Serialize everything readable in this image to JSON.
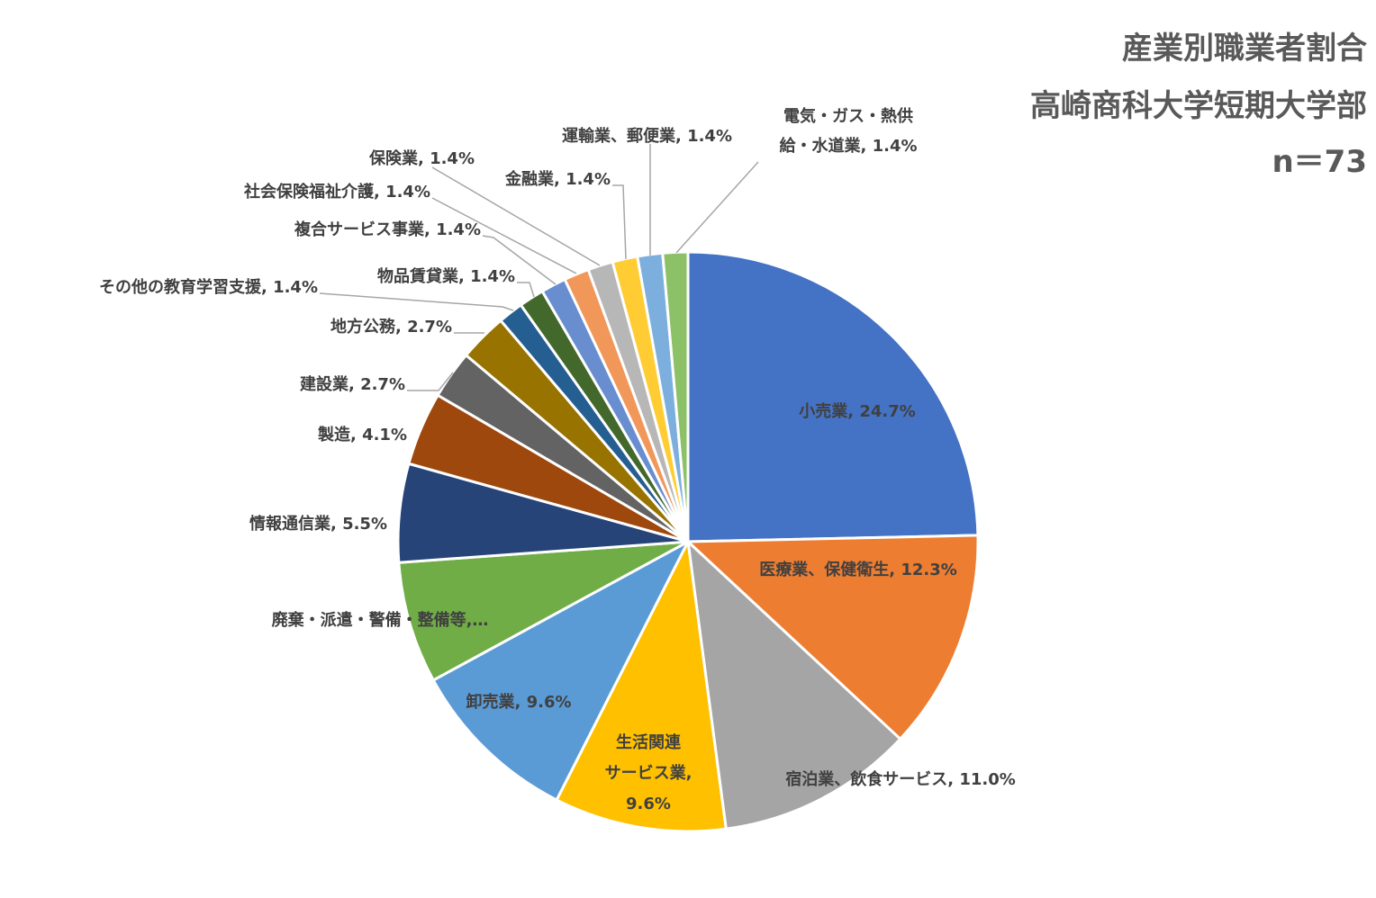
{
  "title_lines": [
    "産業別職業者割合",
    "高崎商科大学短期大学部",
    "n＝73"
  ],
  "chart_data": {
    "type": "pie",
    "title": "産業別職業者割合 高崎商科大学短期大学部 n＝73",
    "slices": [
      {
        "label": "小売業",
        "value": 24.7,
        "label_text": [
          "小売業, 24.7%"
        ],
        "color": "#4472C4"
      },
      {
        "label": "医療業、保健衛生",
        "value": 12.3,
        "label_text": [
          "医療業、保健衛生, 12.3%"
        ],
        "color": "#ED7D31"
      },
      {
        "label": "宿泊業、飲食サービス",
        "value": 11.0,
        "label_text": [
          "宿泊業、飲食サービス, 11.0%"
        ],
        "color": "#A5A5A5"
      },
      {
        "label": "生活関連サービス業",
        "value": 9.6,
        "label_text": [
          "生活関連",
          "サービス業,",
          "9.6%"
        ],
        "color": "#FFC000"
      },
      {
        "label": "卸売業",
        "value": 9.6,
        "label_text": [
          "卸売業, 9.6%"
        ],
        "color": "#5B9BD5"
      },
      {
        "label": "廃棄・派遣・警備・整備等",
        "value": 6.8,
        "label_text": [
          "廃棄・派遣・警備・整備等,…"
        ],
        "color": "#70AD47"
      },
      {
        "label": "情報通信業",
        "value": 5.5,
        "label_text": [
          "情報通信業, 5.5%"
        ],
        "color": "#264478"
      },
      {
        "label": "製造",
        "value": 4.1,
        "label_text": [
          "製造, 4.1%"
        ],
        "color": "#9E480E"
      },
      {
        "label": "建設業",
        "value": 2.7,
        "label_text": [
          "建設業, 2.7%"
        ],
        "color": "#636363"
      },
      {
        "label": "地方公務",
        "value": 2.7,
        "label_text": [
          "地方公務, 2.7%"
        ],
        "color": "#997300"
      },
      {
        "label": "その他の教育学習支援",
        "value": 1.4,
        "label_text": [
          "その他の教育学習支援, 1.4%"
        ],
        "color": "#255E91"
      },
      {
        "label": "物品賃貸業",
        "value": 1.4,
        "label_text": [
          "物品賃貸業, 1.4%"
        ],
        "color": "#43682B"
      },
      {
        "label": "複合サービス事業",
        "value": 1.4,
        "label_text": [
          "複合サービス事業, 1.4%"
        ],
        "color": "#698ED0"
      },
      {
        "label": "社会保険福祉介護",
        "value": 1.4,
        "label_text": [
          "社会保険福祉介護, 1.4%"
        ],
        "color": "#F1975A"
      },
      {
        "label": "保険業",
        "value": 1.4,
        "label_text": [
          "保険業, 1.4%"
        ],
        "color": "#B7B7B7"
      },
      {
        "label": "金融業",
        "value": 1.4,
        "label_text": [
          "金融業, 1.4%"
        ],
        "color": "#FFCD33"
      },
      {
        "label": "運輸業、郵便業",
        "value": 1.4,
        "label_text": [
          "運輸業、郵便業, 1.4%"
        ],
        "color": "#7CAFDD"
      },
      {
        "label": "電気・ガス・熱供給・水道業",
        "value": 1.4,
        "label_text": [
          "電気・ガス・熱供",
          "給・水道業, 1.4%"
        ],
        "color": "#8CC168"
      }
    ],
    "legend": "none"
  }
}
